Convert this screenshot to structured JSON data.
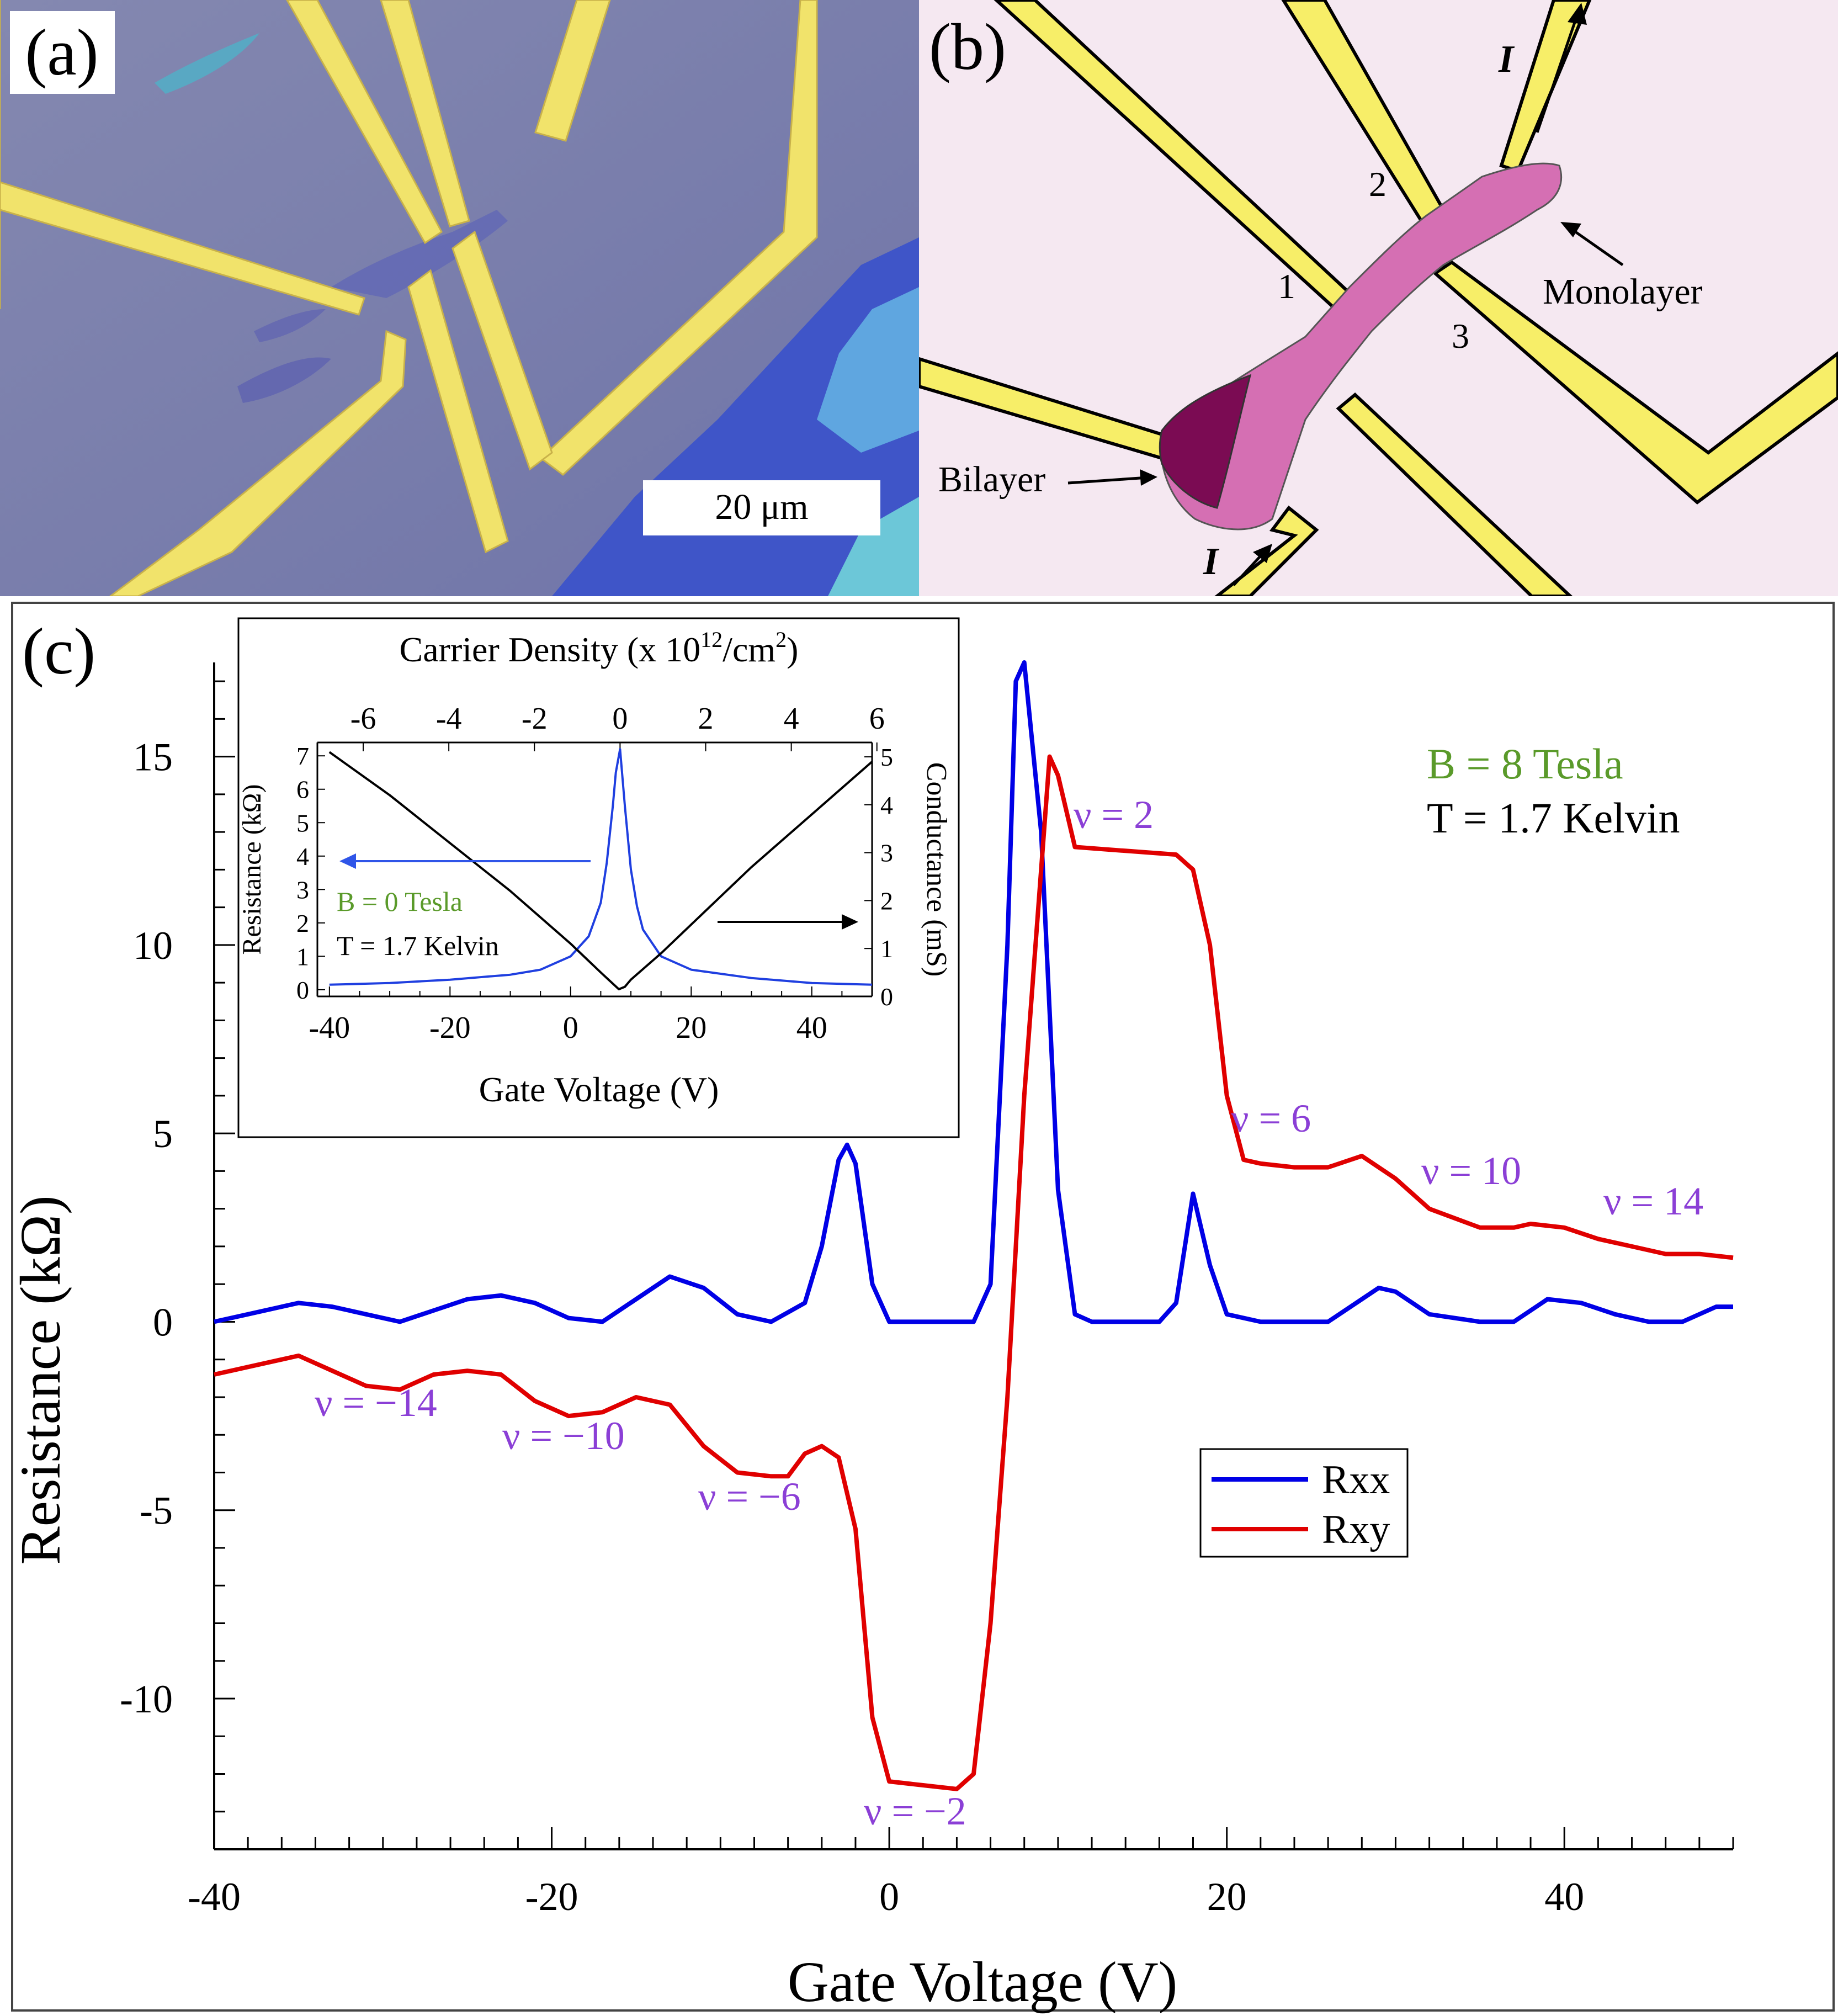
{
  "panels": {
    "a": {
      "label": "(a)",
      "scale_bar": "20 μm",
      "colors": {
        "substrate": "#7a7daa",
        "gold": "#f0e06a",
        "flake": "#6b6fb8",
        "thick": "#3f6fd6"
      }
    },
    "b": {
      "label": "(b)",
      "contact_numbers": [
        "1",
        "2",
        "3"
      ],
      "current_labels": [
        "I",
        "I"
      ],
      "monolayer_label": "Monolayer",
      "bilayer_label": "Bilayer",
      "colors": {
        "background": "#f4e6f0",
        "lead": "#f7ef6a",
        "monolayer": "#d671b4",
        "bilayer": "#7a0a52"
      }
    },
    "c": {
      "label": "(c)"
    }
  },
  "chart_data": [
    {
      "type": "line",
      "title": "",
      "xlabel": "Gate Voltage (V)",
      "ylabel": "Resistance (kΩ)",
      "xlim": [
        -40,
        50
      ],
      "ylim": [
        -14,
        17.5
      ],
      "x_ticks": [
        -40,
        -20,
        0,
        20,
        40
      ],
      "x_tick_labels": [
        "-40",
        "-20",
        "0",
        "20",
        "40"
      ],
      "y_ticks": [
        15,
        10,
        5,
        0,
        -5,
        -10
      ],
      "y_tick_labels": [
        "15",
        "10",
        "5",
        "0",
        "-5",
        "-10"
      ],
      "annotations": {
        "field": "B = 8 Tesla",
        "temperature": "T = 1.7 Kelvin",
        "nu_labels": [
          "ν = 2",
          "ν = 6",
          "ν = 10",
          "ν = 14",
          "ν = −14",
          "ν = −10",
          "ν = −6",
          "ν = −2"
        ]
      },
      "legend": [
        "Rxx",
        "Rxy"
      ],
      "legend_position": "lower-right",
      "colors": {
        "Rxx": "#0000e6",
        "Rxy": "#e00000",
        "nu": "#8b3fd6",
        "field": "#5a9a2a"
      },
      "series": [
        {
          "name": "Rxx",
          "x": [
            -40,
            -38,
            -35,
            -33,
            -31,
            -29,
            -27,
            -25,
            -23,
            -21,
            -19,
            -17,
            -15,
            -13,
            -11,
            -9,
            -7,
            -5,
            -4,
            -3,
            -2.5,
            -2,
            -1,
            0,
            1,
            3,
            5,
            6,
            7,
            7.5,
            8,
            9,
            10,
            11,
            12,
            14,
            16,
            17,
            18,
            19,
            20,
            22,
            26,
            28,
            29,
            30,
            32,
            35,
            37,
            39,
            41,
            43,
            45,
            47,
            49,
            50
          ],
          "y": [
            0.0,
            0.2,
            0.5,
            0.4,
            0.2,
            0.0,
            0.3,
            0.6,
            0.7,
            0.5,
            0.1,
            0.0,
            0.6,
            1.2,
            0.9,
            0.2,
            0.0,
            0.5,
            2.0,
            4.3,
            4.7,
            4.2,
            1.0,
            0.0,
            0.0,
            0.0,
            0.0,
            1.0,
            10.0,
            17.0,
            17.5,
            13.0,
            3.5,
            0.2,
            0.0,
            0.0,
            0.0,
            0.5,
            3.4,
            1.5,
            0.2,
            0.0,
            0.0,
            0.6,
            0.9,
            0.8,
            0.2,
            0.0,
            0.0,
            0.6,
            0.5,
            0.2,
            0.0,
            0.0,
            0.4,
            0.4
          ]
        },
        {
          "name": "Rxy",
          "x": [
            -40,
            -38,
            -35,
            -33,
            -31,
            -29,
            -27,
            -25,
            -23,
            -21,
            -19,
            -17,
            -15,
            -13,
            -11,
            -9,
            -7,
            -6,
            -5,
            -4,
            -3,
            -2,
            -1,
            0,
            2,
            4,
            5,
            6,
            7,
            8,
            9,
            9.5,
            10,
            11,
            14,
            17,
            18,
            19,
            20,
            21,
            22,
            24,
            26,
            28,
            30,
            32,
            35,
            37,
            38,
            40,
            42,
            44,
            46,
            48,
            50
          ],
          "y": [
            -1.4,
            -1.2,
            -0.9,
            -1.3,
            -1.7,
            -1.8,
            -1.4,
            -1.3,
            -1.4,
            -2.1,
            -2.5,
            -2.4,
            -2.0,
            -2.2,
            -3.3,
            -4.0,
            -4.1,
            -4.1,
            -3.5,
            -3.3,
            -3.6,
            -5.5,
            -10.5,
            -12.2,
            -12.3,
            -12.4,
            -12.0,
            -8.0,
            -2.0,
            6.0,
            12.0,
            15.0,
            14.5,
            12.6,
            12.5,
            12.4,
            12.0,
            10.0,
            6.0,
            4.3,
            4.2,
            4.1,
            4.1,
            4.4,
            3.8,
            3.0,
            2.5,
            2.5,
            2.6,
            2.5,
            2.2,
            2.0,
            1.8,
            1.8,
            1.7
          ]
        }
      ],
      "inset": {
        "type": "line",
        "xlabel": "Gate Voltage (V)",
        "top_xlabel": "Carrier Density (x 10^12/cm^2)",
        "top_xlabel_parts": [
          "Carrier Density (x 10",
          "12",
          "/cm",
          "2",
          ")"
        ],
        "ylabel_left": "Resistance (kΩ)",
        "ylabel_right": "Conductance (mS)",
        "xlim": [
          -42,
          50
        ],
        "ylim_left": [
          -0.2,
          7.4
        ],
        "ylim_right": [
          0,
          5.3
        ],
        "x_tick_labels": [
          "-40",
          "-20",
          "0",
          "20",
          "40"
        ],
        "x_ticks": [
          -40,
          -20,
          0,
          20,
          40
        ],
        "top_tick_labels": [
          "-6",
          "-4",
          "-2",
          "0",
          "2",
          "4",
          "6"
        ],
        "top_ticks": [
          -6,
          -4,
          -2,
          0,
          2,
          4,
          6
        ],
        "density_zero_gate_voltage": 8.2,
        "volts_per_density_unit": 7.1,
        "left_tick_labels": [
          "7",
          "6",
          "5",
          "4",
          "3",
          "2",
          "1",
          "0"
        ],
        "left_ticks": [
          7,
          6,
          5,
          4,
          3,
          2,
          1,
          0
        ],
        "right_tick_labels": [
          "5",
          "4",
          "3",
          "2",
          "1",
          "0"
        ],
        "right_ticks": [
          5,
          4,
          3,
          2,
          1,
          0
        ],
        "field": "B = 0 Tesla",
        "temperature": "T = 1.7 Kelvin",
        "series": [
          {
            "name": "Resistance",
            "axis": "left",
            "x": [
              -40,
              -30,
              -20,
              -10,
              -5,
              0,
              3,
              5,
              6,
              7,
              7.5,
              8.2,
              9,
              10,
              11,
              12,
              15,
              20,
              30,
              40,
              50
            ],
            "y": [
              0.15,
              0.2,
              0.3,
              0.45,
              0.6,
              1.0,
              1.6,
              2.6,
              3.8,
              5.5,
              6.5,
              7.2,
              5.5,
              3.6,
              2.5,
              1.8,
              1.0,
              0.6,
              0.35,
              0.2,
              0.15
            ]
          },
          {
            "name": "Conductance",
            "axis": "right",
            "x": [
              -40,
              -30,
              -20,
              -10,
              0,
              5,
              8,
              9,
              10,
              15,
              20,
              30,
              40,
              50
            ],
            "y": [
              5.1,
              4.2,
              3.2,
              2.2,
              1.1,
              0.5,
              0.15,
              0.2,
              0.35,
              0.9,
              1.5,
              2.7,
              3.8,
              4.9
            ]
          }
        ]
      }
    }
  ]
}
